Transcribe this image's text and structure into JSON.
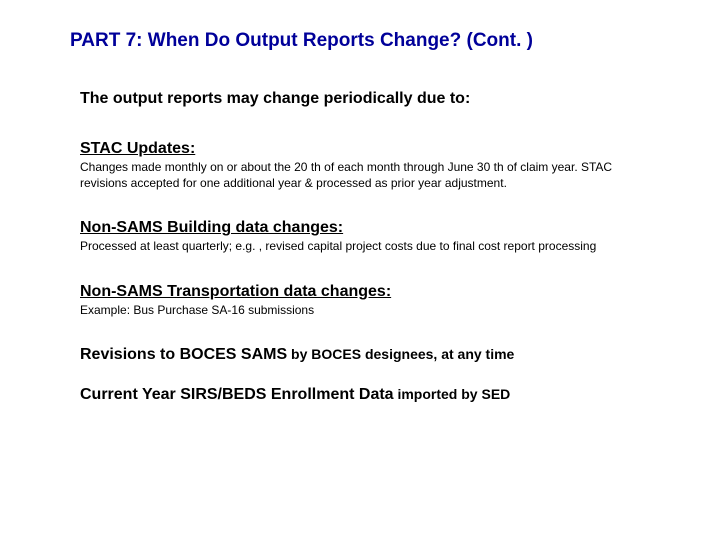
{
  "colors": {
    "title": "#000099",
    "text": "#000000",
    "background": "#ffffff"
  },
  "title": "PART 7: When Do Output Reports Change? (Cont. )",
  "intro": "The output reports may change periodically due to:",
  "sections": [
    {
      "heading": "STAC Updates:",
      "body": "Changes made monthly on or about the 20 th of each month through June 30 th of claim year. STAC revisions accepted for one additional year & processed as prior year adjustment."
    },
    {
      "heading": "Non-SAMS Building data changes:",
      "body": "Processed at least quarterly; e.g. , revised capital project costs due to final cost report processing"
    },
    {
      "heading": "Non-SAMS Transportation data changes:",
      "body": "Example: Bus Purchase SA-16 submissions"
    }
  ],
  "lines": [
    {
      "bold": "Revisions to BOCES SAMS",
      "rest": " by BOCES designees, at any time"
    },
    {
      "bold": "Current Year SIRS/BEDS Enrollment Data",
      "rest": " imported by SED"
    }
  ]
}
